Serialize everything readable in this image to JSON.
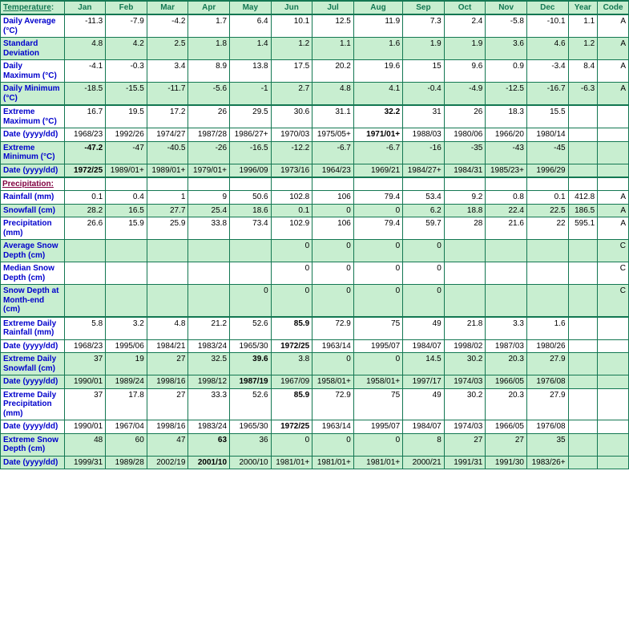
{
  "header": {
    "temp": "Temperature",
    "months": [
      "Jan",
      "Feb",
      "Mar",
      "Apr",
      "May",
      "Jun",
      "Jul",
      "Aug",
      "Sep",
      "Oct",
      "Nov",
      "Dec"
    ],
    "year": "Year",
    "code": "Code",
    "precip": "Precipitation"
  },
  "colors": {
    "green_bg": "#c8eed0",
    "border": "#137752",
    "link": "#0000cc",
    "section": "#800040"
  },
  "rows": [
    {
      "label": "Daily Average (°C)",
      "bg": "w",
      "v": [
        "-11.3",
        "-7.9",
        "-4.2",
        "1.7",
        "6.4",
        "10.1",
        "12.5",
        "11.9",
        "7.3",
        "2.4",
        "-5.8",
        "-10.1",
        "1.1",
        "A"
      ]
    },
    {
      "label": "Standard Deviation",
      "bg": "g",
      "v": [
        "4.8",
        "4.2",
        "2.5",
        "1.8",
        "1.4",
        "1.2",
        "1.1",
        "1.6",
        "1.9",
        "1.9",
        "3.6",
        "4.6",
        "1.2",
        "A"
      ]
    },
    {
      "label": "Daily Maximum (°C)",
      "bg": "w",
      "v": [
        "-4.1",
        "-0.3",
        "3.4",
        "8.9",
        "13.8",
        "17.5",
        "20.2",
        "19.6",
        "15",
        "9.6",
        "0.9",
        "-3.4",
        "8.4",
        "A"
      ]
    },
    {
      "label": "Daily Minimum (°C)",
      "bg": "g",
      "dblb": true,
      "v": [
        "-18.5",
        "-15.5",
        "-11.7",
        "-5.6",
        "-1",
        "2.7",
        "4.8",
        "4.1",
        "-0.4",
        "-4.9",
        "-12.5",
        "-16.7",
        "-6.3",
        "A"
      ]
    },
    {
      "label": "Extreme Maximum (°C)",
      "bg": "w",
      "v": [
        "16.7",
        "19.5",
        "17.2",
        "26",
        "29.5",
        "30.6",
        "31.1",
        {
          "t": "32.2",
          "b": true
        },
        "31",
        "26",
        "18.3",
        "15.5",
        "",
        ""
      ]
    },
    {
      "label": "Date (yyyy/dd)",
      "bg": "w",
      "v": [
        "1968/23",
        "1992/26",
        "1974/27",
        "1987/28",
        "1986/27+",
        "1970/03",
        "1975/05+",
        {
          "t": "1971/01+",
          "b": true
        },
        "1988/03",
        "1980/06",
        "1966/20",
        "1980/14",
        "",
        ""
      ]
    },
    {
      "label": "Extreme Minimum (°C)",
      "bg": "g",
      "v": [
        {
          "t": "-47.2",
          "b": true
        },
        "-47",
        "-40.5",
        "-26",
        "-16.5",
        "-12.2",
        "-6.7",
        "-6.7",
        "-16",
        "-35",
        "-43",
        "-45",
        "",
        ""
      ]
    },
    {
      "label": "Date (yyyy/dd)",
      "bg": "g",
      "dblb": true,
      "v": [
        {
          "t": "1972/25",
          "b": true
        },
        "1989/01+",
        "1989/01+",
        "1979/01+",
        "1996/09",
        "1973/16",
        "1964/23",
        "1969/21",
        "1984/27+",
        "1984/31",
        "1985/23+",
        "1996/29",
        "",
        ""
      ]
    },
    {
      "section": true,
      "text": "Precipitation",
      "bg": "w"
    },
    {
      "label": "Rainfall (mm)",
      "bg": "w",
      "v": [
        "0.1",
        "0.4",
        "1",
        "9",
        "50.6",
        "102.8",
        "106",
        "79.4",
        "53.4",
        "9.2",
        "0.8",
        "0.1",
        "412.8",
        "A"
      ]
    },
    {
      "label": "Snowfall (cm)",
      "bg": "g",
      "v": [
        "28.2",
        "16.5",
        "27.7",
        "25.4",
        "18.6",
        "0.1",
        "0",
        "0",
        "6.2",
        "18.8",
        "22.4",
        "22.5",
        "186.5",
        "A"
      ]
    },
    {
      "label": "Precipitation (mm)",
      "bg": "w",
      "v": [
        "26.6",
        "15.9",
        "25.9",
        "33.8",
        "73.4",
        "102.9",
        "106",
        "79.4",
        "59.7",
        "28",
        "21.6",
        "22",
        "595.1",
        "A"
      ]
    },
    {
      "label": "Average Snow Depth (cm)",
      "bg": "g",
      "v": [
        "",
        "",
        "",
        "",
        "",
        "0",
        "0",
        "0",
        "0",
        "",
        "",
        "",
        "",
        "C"
      ]
    },
    {
      "label": "Median Snow Depth (cm)",
      "bg": "w",
      "v": [
        "",
        "",
        "",
        "",
        "",
        "0",
        "0",
        "0",
        "0",
        "",
        "",
        "",
        "",
        "C"
      ]
    },
    {
      "label": "Snow Depth at Month-end (cm)",
      "bg": "g",
      "dblb": true,
      "v": [
        "",
        "",
        "",
        "",
        "0",
        "0",
        "0",
        "0",
        "0",
        "",
        "",
        "",
        "",
        "C"
      ]
    },
    {
      "label": "Extreme Daily Rainfall (mm)",
      "bg": "w",
      "v": [
        "5.8",
        "3.2",
        "4.8",
        "21.2",
        "52.6",
        {
          "t": "85.9",
          "b": true
        },
        "72.9",
        "75",
        "49",
        "21.8",
        "3.3",
        "1.6",
        "",
        ""
      ]
    },
    {
      "label": "Date (yyyy/dd)",
      "bg": "w",
      "v": [
        "1968/23",
        "1995/06",
        "1984/21",
        "1983/24",
        "1965/30",
        {
          "t": "1972/25",
          "b": true
        },
        "1963/14",
        "1995/07",
        "1984/07",
        "1998/02",
        "1987/03",
        "1980/26",
        "",
        ""
      ]
    },
    {
      "label": "Extreme Daily Snowfall (cm)",
      "bg": "g",
      "v": [
        "37",
        "19",
        "27",
        "32.5",
        {
          "t": "39.6",
          "b": true
        },
        "3.8",
        "0",
        "0",
        "14.5",
        "30.2",
        "20.3",
        "27.9",
        "",
        ""
      ]
    },
    {
      "label": "Date (yyyy/dd)",
      "bg": "g",
      "v": [
        "1990/01",
        "1989/24",
        "1998/16",
        "1998/12",
        {
          "t": "1987/19",
          "b": true
        },
        "1967/09",
        "1958/01+",
        "1958/01+",
        "1997/17",
        "1974/03",
        "1966/05",
        "1976/08",
        "",
        ""
      ]
    },
    {
      "label": "Extreme Daily Precipitation (mm)",
      "bg": "w",
      "v": [
        "37",
        "17.8",
        "27",
        "33.3",
        "52.6",
        {
          "t": "85.9",
          "b": true
        },
        "72.9",
        "75",
        "49",
        "30.2",
        "20.3",
        "27.9",
        "",
        ""
      ]
    },
    {
      "label": "Date (yyyy/dd)",
      "bg": "w",
      "v": [
        "1990/01",
        "1967/04",
        "1998/16",
        "1983/24",
        "1965/30",
        {
          "t": "1972/25",
          "b": true
        },
        "1963/14",
        "1995/07",
        "1984/07",
        "1974/03",
        "1966/05",
        "1976/08",
        "",
        ""
      ]
    },
    {
      "label": "Extreme Snow Depth (cm)",
      "bg": "g",
      "v": [
        "48",
        "60",
        "47",
        {
          "t": "63",
          "b": true
        },
        "36",
        "0",
        "0",
        "0",
        "8",
        "27",
        "27",
        "35",
        "",
        ""
      ]
    },
    {
      "label": "Date (yyyy/dd)",
      "bg": "g",
      "v": [
        "1999/31",
        "1989/28",
        "2002/19",
        {
          "t": "2001/10",
          "b": true
        },
        "2000/10",
        "1981/01+",
        "1981/01+",
        "1981/01+",
        "2000/21",
        "1991/31",
        "1991/30",
        "1983/26+",
        "",
        ""
      ]
    }
  ]
}
